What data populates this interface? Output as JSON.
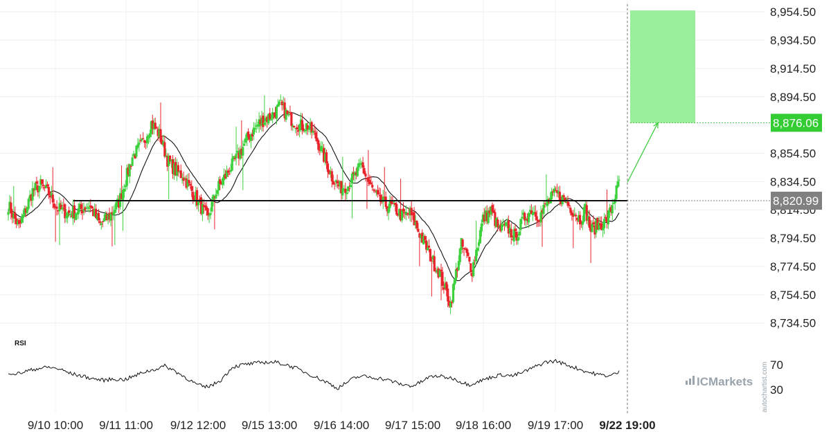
{
  "chart_data": {
    "type": "candlestick",
    "y_ticks": [
      "8,954.50",
      "8,934.50",
      "8,914.50",
      "8,894.50",
      "8,854.50",
      "8,834.50",
      "8,814.50",
      "8,794.50",
      "8,774.50",
      "8,754.50",
      "8,734.50"
    ],
    "y_tick_values": [
      8954.5,
      8934.5,
      8914.5,
      8894.5,
      8854.5,
      8834.5,
      8814.5,
      8794.5,
      8774.5,
      8754.5,
      8734.5
    ],
    "ylim": [
      8728,
      8958
    ],
    "x_ticks": [
      "9/10 10:00",
      "9/11 11:00",
      "9/12 12:00",
      "9/15 13:00",
      "9/16 14:00",
      "9/17 15:00",
      "9/18 16:00",
      "9/19 17:00",
      "9/22 19:00"
    ],
    "x_tick_bold_last": true,
    "support_level": 8820.99,
    "support_label": "8,820.99",
    "target_level": 8876.06,
    "target_label": "8,876.06",
    "target_zone": [
      8876.06,
      8955.5
    ],
    "colors": {
      "up": "#3ed13e",
      "down": "#e8232b",
      "target_zone": "#99ee99",
      "target_tag": "#33cc33",
      "support_tag": "#808080",
      "moving_average": "#111111",
      "rsi_line": "#111111"
    },
    "price_anchors": [
      [
        0,
        8818
      ],
      [
        8,
        8802
      ],
      [
        18,
        8828
      ],
      [
        24,
        8832
      ],
      [
        31,
        8825
      ],
      [
        36,
        8816
      ],
      [
        44,
        8812
      ],
      [
        52,
        8814
      ],
      [
        60,
        8818
      ],
      [
        68,
        8804
      ],
      [
        75,
        8810
      ],
      [
        82,
        8820
      ],
      [
        92,
        8852
      ],
      [
        100,
        8862
      ],
      [
        106,
        8876
      ],
      [
        112,
        8868
      ],
      [
        118,
        8850
      ],
      [
        124,
        8842
      ],
      [
        130,
        8838
      ],
      [
        136,
        8828
      ],
      [
        142,
        8818
      ],
      [
        148,
        8808
      ],
      [
        154,
        8828
      ],
      [
        162,
        8840
      ],
      [
        170,
        8852
      ],
      [
        178,
        8866
      ],
      [
        186,
        8876
      ],
      [
        196,
        8882
      ],
      [
        202,
        8888
      ],
      [
        208,
        8880
      ],
      [
        216,
        8874
      ],
      [
        222,
        8874
      ],
      [
        228,
        8866
      ],
      [
        234,
        8852
      ],
      [
        240,
        8838
      ],
      [
        246,
        8830
      ],
      [
        252,
        8832
      ],
      [
        258,
        8840
      ],
      [
        262,
        8846
      ],
      [
        268,
        8832
      ],
      [
        274,
        8822
      ],
      [
        280,
        8818
      ],
      [
        286,
        8816
      ],
      [
        292,
        8810
      ],
      [
        298,
        8812
      ],
      [
        304,
        8800
      ],
      [
        310,
        8788
      ],
      [
        316,
        8776
      ],
      [
        320,
        8770
      ],
      [
        324,
        8758
      ],
      [
        328,
        8748
      ],
      [
        332,
        8770
      ],
      [
        336,
        8790
      ],
      [
        340,
        8782
      ],
      [
        344,
        8772
      ],
      [
        348,
        8790
      ],
      [
        352,
        8808
      ],
      [
        358,
        8814
      ],
      [
        364,
        8800
      ],
      [
        370,
        8802
      ],
      [
        376,
        8795
      ],
      [
        382,
        8808
      ],
      [
        388,
        8815
      ],
      [
        394,
        8810
      ],
      [
        400,
        8820
      ],
      [
        406,
        8826
      ],
      [
        412,
        8822
      ],
      [
        418,
        8815
      ],
      [
        424,
        8808
      ],
      [
        428,
        8815
      ],
      [
        432,
        8800
      ],
      [
        438,
        8804
      ],
      [
        443,
        8806
      ],
      [
        447,
        8815
      ],
      [
        451,
        8828
      ],
      [
        453,
        8834
      ]
    ],
    "rsi": {
      "label": "RSI",
      "ticks": [
        "70",
        "30"
      ],
      "tick_values": [
        70,
        30
      ],
      "range": [
        0,
        100
      ],
      "anchors": [
        [
          0,
          58
        ],
        [
          6,
          55
        ],
        [
          14,
          60
        ],
        [
          22,
          64
        ],
        [
          30,
          66
        ],
        [
          38,
          63
        ],
        [
          46,
          56
        ],
        [
          54,
          52
        ],
        [
          62,
          48
        ],
        [
          70,
          45
        ],
        [
          78,
          47
        ],
        [
          86,
          46
        ],
        [
          94,
          52
        ],
        [
          100,
          58
        ],
        [
          108,
          62
        ],
        [
          116,
          68
        ],
        [
          122,
          62
        ],
        [
          128,
          54
        ],
        [
          134,
          46
        ],
        [
          140,
          38
        ],
        [
          146,
          34
        ],
        [
          152,
          38
        ],
        [
          158,
          46
        ],
        [
          166,
          66
        ],
        [
          174,
          70
        ],
        [
          182,
          72
        ],
        [
          190,
          74
        ],
        [
          198,
          74
        ],
        [
          206,
          70
        ],
        [
          214,
          64
        ],
        [
          222,
          56
        ],
        [
          230,
          48
        ],
        [
          238,
          40
        ],
        [
          244,
          32
        ],
        [
          250,
          40
        ],
        [
          256,
          48
        ],
        [
          262,
          52
        ],
        [
          268,
          50
        ],
        [
          276,
          48
        ],
        [
          284,
          44
        ],
        [
          292,
          38
        ],
        [
          300,
          36
        ],
        [
          306,
          42
        ],
        [
          312,
          50
        ],
        [
          318,
          52
        ],
        [
          324,
          50
        ],
        [
          330,
          48
        ],
        [
          336,
          42
        ],
        [
          342,
          38
        ],
        [
          350,
          44
        ],
        [
          358,
          50
        ],
        [
          366,
          54
        ],
        [
          374,
          52
        ],
        [
          382,
          58
        ],
        [
          390,
          66
        ],
        [
          398,
          74
        ],
        [
          406,
          76
        ],
        [
          414,
          70
        ],
        [
          422,
          64
        ],
        [
          430,
          58
        ],
        [
          438,
          54
        ],
        [
          446,
          52
        ],
        [
          453,
          58
        ]
      ]
    },
    "n_candles": 454
  },
  "branding": {
    "logo_text": "ICMarkets",
    "side_text": "autochartist.com"
  }
}
